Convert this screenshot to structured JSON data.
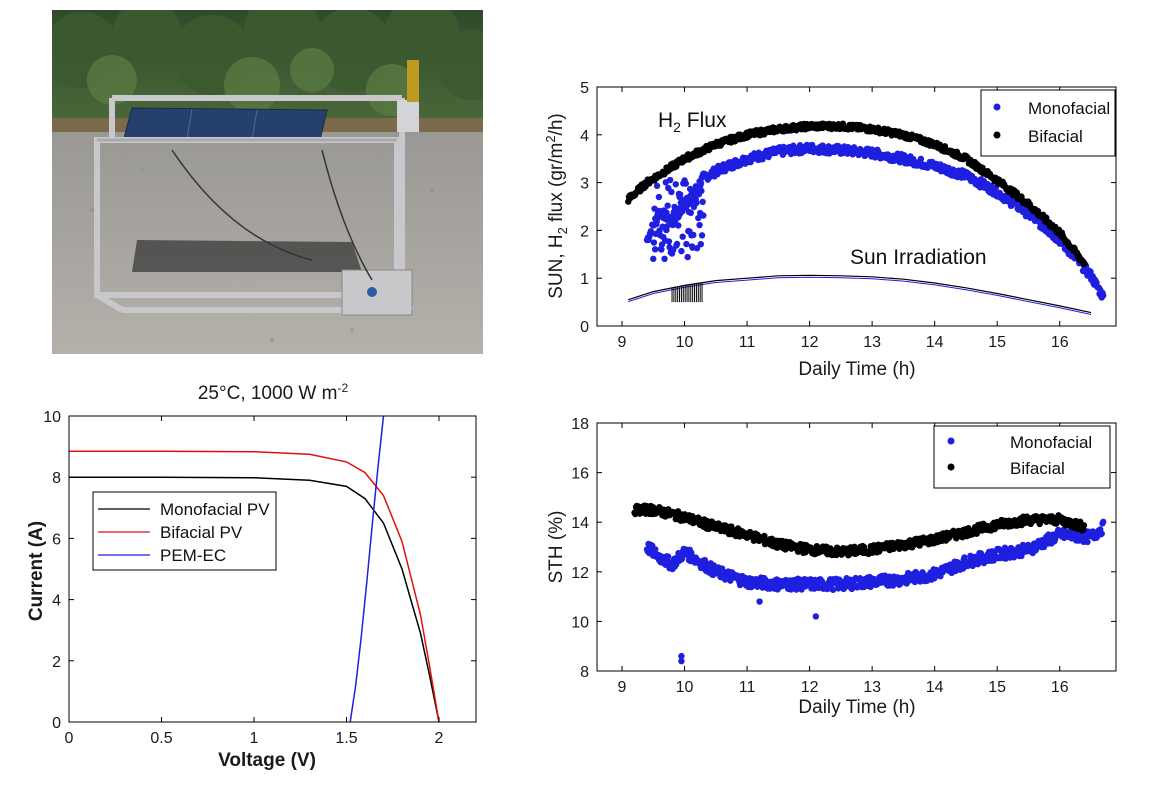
{
  "photo": {
    "description_icon": "solar-panel-rig-photo"
  },
  "charts": {
    "top_right": {
      "type": "scatter",
      "xlabel": "Daily Time (h)",
      "ylabel_prefix": "SUN, H",
      "ylabel_sub": "2",
      "ylabel_mid": " flux (gr/m",
      "ylabel_sup": "2",
      "ylabel_suffix": "/h)",
      "xlim": [
        8.6,
        16.9
      ],
      "ylim": [
        0,
        5
      ],
      "xticks": [
        "9",
        "10",
        "11",
        "12",
        "13",
        "14",
        "15",
        "16"
      ],
      "yticks": [
        "0",
        "1",
        "2",
        "3",
        "4",
        "5"
      ],
      "legend": [
        "Monofacial",
        "Bifacial"
      ],
      "annotation_flux_main": "H",
      "annotation_flux_sub": "2",
      "annotation_flux_tail": " Flux",
      "annotation_sun": "Sun Irradiation",
      "colors": {
        "monofacial": "#1f1fe0",
        "bifacial": "#000000"
      }
    },
    "bottom_left": {
      "type": "line",
      "title_main": "25°C, 1000 W m",
      "title_sup": "-2",
      "xlabel": "Voltage (V)",
      "ylabel": "Current (A)",
      "xlim": [
        0,
        2.2
      ],
      "ylim": [
        0,
        10
      ],
      "xticks": [
        "0",
        "0.5",
        "1",
        "1.5",
        "2"
      ],
      "yticks": [
        "0",
        "2",
        "4",
        "6",
        "8",
        "10"
      ],
      "legend": [
        "Monofacial PV",
        "Bifacial PV",
        "PEM-EC"
      ],
      "colors": {
        "mono": "#000000",
        "bi": "#e01010",
        "pem": "#1f1fe0"
      }
    },
    "bottom_right": {
      "type": "scatter",
      "xlabel": "Daily Time (h)",
      "ylabel": "STH (%)",
      "xlim": [
        8.6,
        16.9
      ],
      "ylim": [
        8,
        18
      ],
      "xticks": [
        "9",
        "10",
        "11",
        "12",
        "13",
        "14",
        "15",
        "16"
      ],
      "yticks": [
        "8",
        "10",
        "12",
        "14",
        "16",
        "18"
      ],
      "legend": [
        "Monofacial",
        "Bifacial"
      ]
    }
  },
  "chart_data": [
    {
      "type": "scatter",
      "xlabel": "Daily Time (h)",
      "ylabel": "SUN, H2 flux (gr/m2/h)",
      "series": [
        {
          "name": "Monofacial",
          "x": [
            9.4,
            9.6,
            9.8,
            10.0,
            10.3,
            10.6,
            11.0,
            11.5,
            12.0,
            12.5,
            13.0,
            13.5,
            14.0,
            14.5,
            15.0,
            15.5,
            16.0,
            16.5,
            16.7
          ],
          "y": [
            1.8,
            2.4,
            2.2,
            2.5,
            3.1,
            3.3,
            3.5,
            3.65,
            3.72,
            3.68,
            3.62,
            3.5,
            3.35,
            3.15,
            2.8,
            2.35,
            1.8,
            1.05,
            0.6
          ]
        },
        {
          "name": "Bifacial",
          "x": [
            9.1,
            9.4,
            9.7,
            10.0,
            10.5,
            11.0,
            11.5,
            12.0,
            12.5,
            13.0,
            13.5,
            14.0,
            14.5,
            15.0,
            15.5,
            16.0,
            16.4
          ],
          "y": [
            2.65,
            3.0,
            3.25,
            3.5,
            3.8,
            4.0,
            4.12,
            4.18,
            4.18,
            4.12,
            4.0,
            3.8,
            3.5,
            3.05,
            2.55,
            1.95,
            1.3
          ]
        },
        {
          "name": "Sun Irradiation",
          "x": [
            9.1,
            9.5,
            10.0,
            10.5,
            11.0,
            11.5,
            12.0,
            12.5,
            13.0,
            13.5,
            14.0,
            14.5,
            15.0,
            15.5,
            16.0,
            16.5
          ],
          "y": [
            0.55,
            0.72,
            0.85,
            0.95,
            1.0,
            1.05,
            1.06,
            1.05,
            1.03,
            0.98,
            0.9,
            0.8,
            0.68,
            0.55,
            0.42,
            0.28
          ]
        }
      ],
      "xlim": [
        8.6,
        16.9
      ],
      "ylim": [
        0,
        5
      ]
    },
    {
      "type": "line",
      "title": "25°C, 1000 W m-2",
      "xlabel": "Voltage (V)",
      "ylabel": "Current (A)",
      "series": [
        {
          "name": "Monofacial PV",
          "x": [
            0,
            0.5,
            1.0,
            1.3,
            1.5,
            1.6,
            1.7,
            1.8,
            1.9,
            1.95,
            2.0
          ],
          "y": [
            8.0,
            8.0,
            7.98,
            7.9,
            7.7,
            7.3,
            6.5,
            5.0,
            2.9,
            1.5,
            0
          ]
        },
        {
          "name": "Bifacial PV",
          "x": [
            0,
            0.5,
            1.0,
            1.3,
            1.5,
            1.6,
            1.7,
            1.8,
            1.9,
            1.95,
            2.0
          ],
          "y": [
            8.85,
            8.85,
            8.83,
            8.75,
            8.5,
            8.15,
            7.4,
            5.9,
            3.5,
            1.8,
            0
          ]
        },
        {
          "name": "PEM-EC",
          "x": [
            1.52,
            1.55,
            1.58,
            1.61,
            1.64,
            1.67,
            1.7
          ],
          "y": [
            0,
            1.2,
            2.8,
            4.6,
            6.5,
            8.3,
            10.0
          ]
        }
      ],
      "xlim": [
        0,
        2.2
      ],
      "ylim": [
        0,
        10
      ]
    },
    {
      "type": "scatter",
      "xlabel": "Daily Time (h)",
      "ylabel": "STH (%)",
      "series": [
        {
          "name": "Monofacial",
          "x": [
            9.4,
            9.6,
            9.8,
            10.0,
            10.5,
            11.0,
            11.5,
            12.0,
            12.5,
            13.0,
            13.5,
            14.0,
            14.5,
            15.0,
            15.5,
            16.0,
            16.5,
            16.7
          ],
          "y": [
            13.0,
            12.6,
            12.3,
            12.8,
            12.0,
            11.6,
            11.5,
            11.5,
            11.5,
            11.6,
            11.7,
            11.9,
            12.4,
            12.7,
            12.9,
            13.5,
            13.4,
            13.8
          ]
        },
        {
          "name": "Bifacial",
          "x": [
            9.2,
            9.5,
            10.0,
            10.5,
            11.0,
            11.5,
            12.0,
            12.5,
            13.0,
            13.5,
            14.0,
            14.5,
            15.0,
            15.5,
            16.0,
            16.4
          ],
          "y": [
            14.5,
            14.5,
            14.2,
            13.8,
            13.5,
            13.1,
            12.9,
            12.8,
            12.9,
            13.1,
            13.3,
            13.6,
            13.9,
            14.1,
            14.1,
            13.8
          ]
        }
      ],
      "xlim": [
        8.6,
        16.9
      ],
      "ylim": [
        8,
        18
      ]
    }
  ]
}
